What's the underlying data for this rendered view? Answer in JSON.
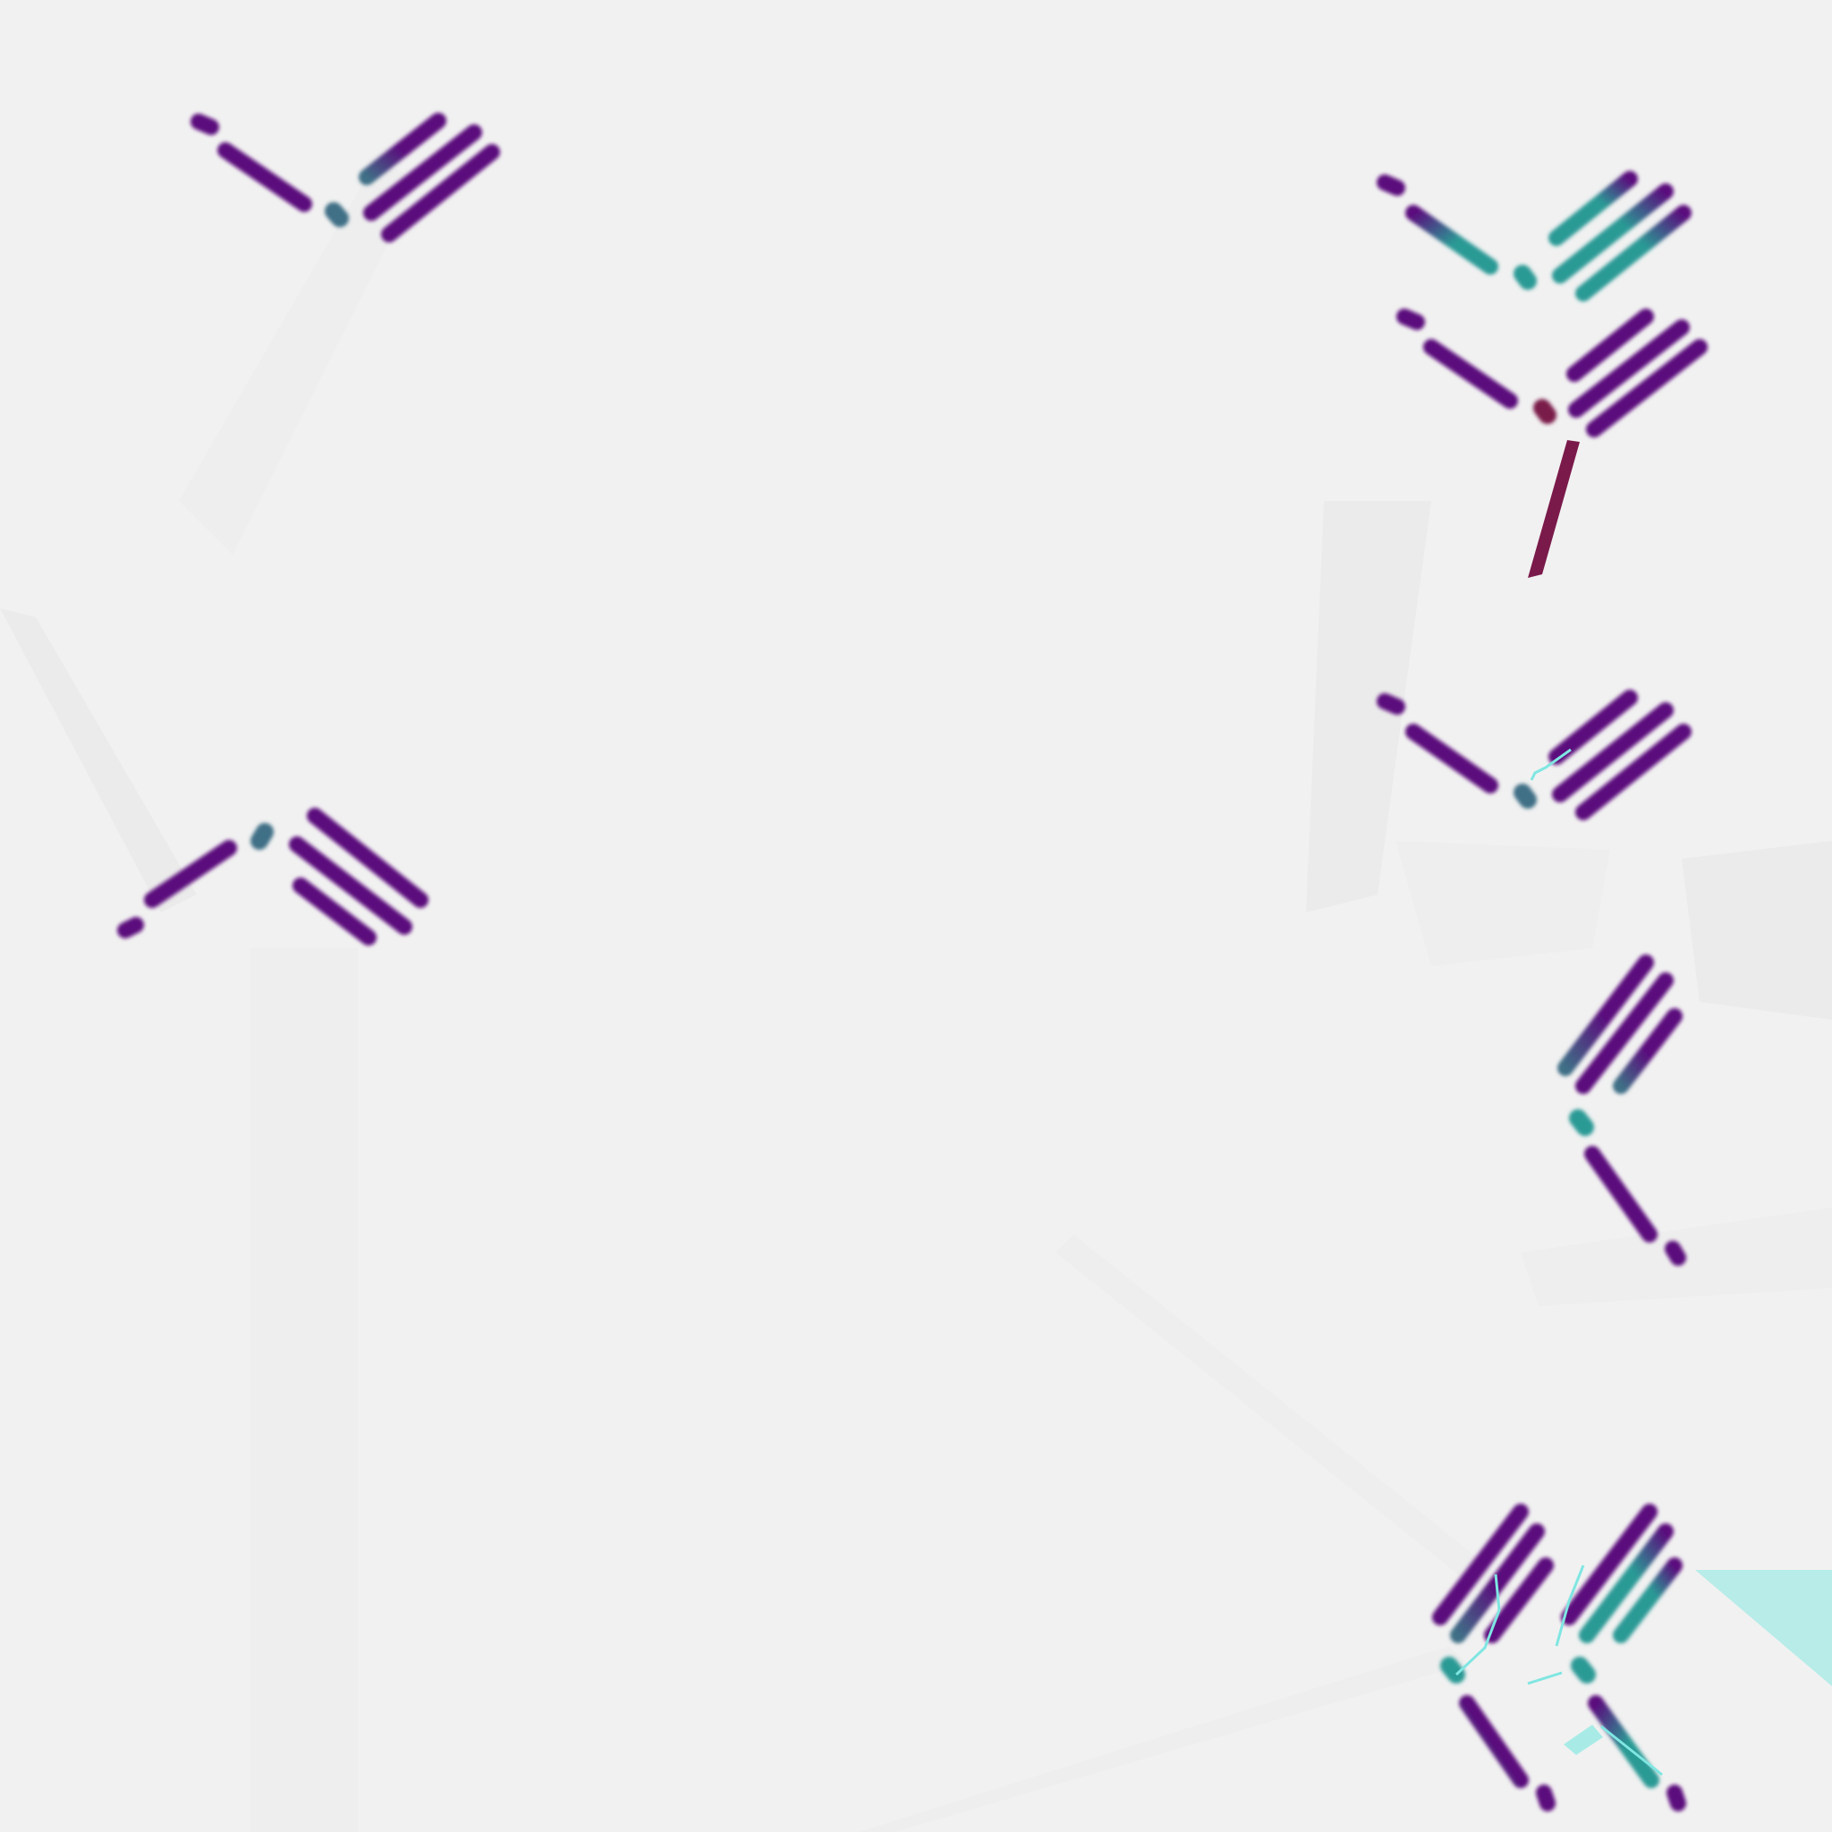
{
  "scene": {
    "background": "#f1f1f1",
    "glyph_colors": {
      "primary": "#5b0b7d",
      "teal": "#2a9a95",
      "slate": "#3f6f86",
      "crimson": "#7a1a4a",
      "accent_cyan": "#7fe6e2"
    },
    "glyphs": [
      {
        "name": "glyph-top-left",
        "variant": "single-chevron-right",
        "tint": "primary"
      },
      {
        "name": "glyph-mid-left",
        "variant": "single-chevron-left-flipped",
        "tint": "primary"
      },
      {
        "name": "glyph-right-1",
        "variant": "single-chevron-right",
        "tint": "teal"
      },
      {
        "name": "glyph-right-2",
        "variant": "single-chevron-right-with-stem",
        "tint": "crimson"
      },
      {
        "name": "glyph-right-3",
        "variant": "single-chevron-right-cracked",
        "tint": "primary"
      },
      {
        "name": "glyph-right-4",
        "variant": "vertical-chevron",
        "tint": "primary"
      },
      {
        "name": "glyph-bottom-right",
        "variant": "double-vertical-chevron",
        "tint": "teal"
      }
    ]
  }
}
